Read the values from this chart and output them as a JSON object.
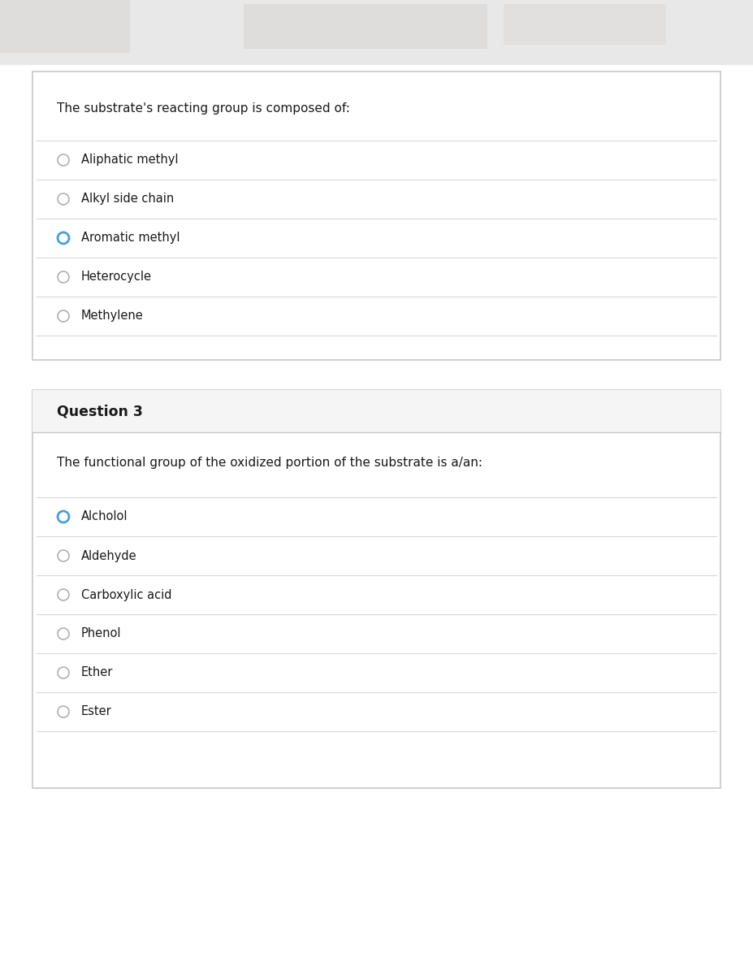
{
  "bg_color": "#ffffff",
  "card_bg": "#ffffff",
  "card_border": "#c8c8c8",
  "header_bg": "#f5f5f5",
  "divider_color": "#d8d8d8",
  "text_color": "#1a1a1a",
  "radio_empty_color": "#b0b0b0",
  "radio_selected_color": "#4a9fd4",
  "block1_question": "The substrate's reacting group is composed of:",
  "block1_options": [
    {
      "label": "Aliphatic methyl",
      "selected": false
    },
    {
      "label": "Alkyl side chain",
      "selected": false
    },
    {
      "label": "Aromatic methyl",
      "selected": true
    },
    {
      "label": "Heterocycle",
      "selected": false
    },
    {
      "label": "Methylene",
      "selected": false
    }
  ],
  "block2_title": "Question 3",
  "block2_question": "The functional group of the oxidized portion of the substrate is a/an:",
  "block2_options": [
    {
      "label": "Alcholol",
      "selected": true
    },
    {
      "label": "Aldehyde",
      "selected": false
    },
    {
      "label": "Carboxylic acid",
      "selected": false
    },
    {
      "label": "Phenol",
      "selected": false
    },
    {
      "label": "Ether",
      "selected": false
    },
    {
      "label": "Ester",
      "selected": false
    }
  ]
}
